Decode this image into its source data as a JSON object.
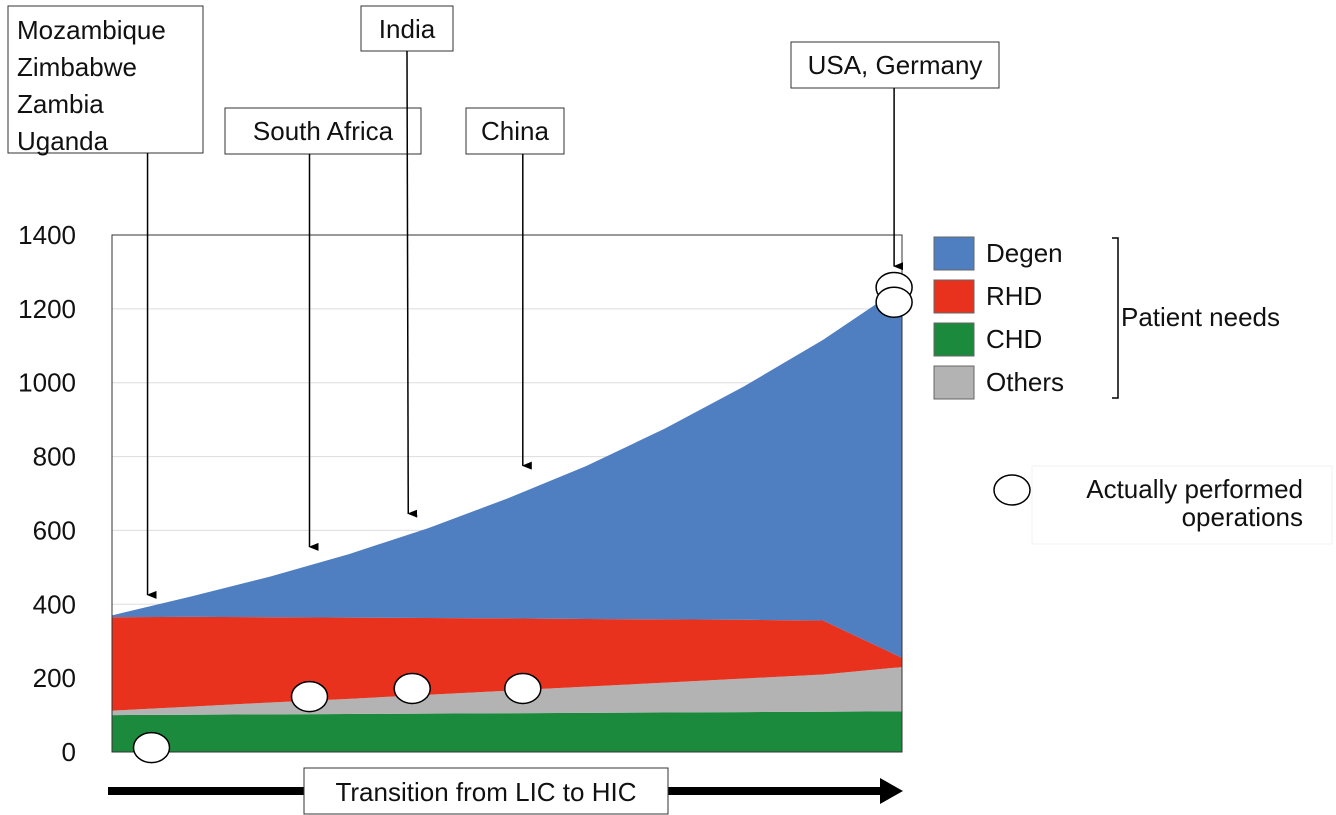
{
  "chart_data": {
    "type": "area",
    "title": "",
    "xlabel": "Transition from LIC to HIC",
    "ylabel": "",
    "ylim": [
      0,
      1400
    ],
    "yticks": [
      0,
      200,
      400,
      600,
      800,
      1000,
      1200,
      1400
    ],
    "x": [
      0,
      10,
      20,
      30,
      40,
      50,
      60,
      70,
      80,
      90,
      100
    ],
    "series": [
      {
        "name": "CHD",
        "color": "#1c8a3c",
        "values": [
          100,
          101,
          102,
          103,
          104,
          105,
          106,
          107,
          108,
          109,
          110
        ]
      },
      {
        "name": "Others",
        "color": "#b3b3b3",
        "values": [
          12,
          22,
          32,
          41,
          51,
          61,
          71,
          81,
          91,
          101,
          120
        ]
      },
      {
        "name": "RHD",
        "color": "#e8321e",
        "values": [
          253,
          243,
          231,
          220,
          208,
          196,
          183,
          171,
          159,
          146,
          25
        ]
      },
      {
        "name": "Degen",
        "color": "#4f7ec1",
        "values": [
          5,
          55,
          110,
          172,
          243,
          324,
          414,
          517,
          632,
          760,
          1005
        ]
      }
    ],
    "operations": [
      {
        "x": 5,
        "y": 12
      },
      {
        "x": 25,
        "y": 150
      },
      {
        "x": 38,
        "y": 172
      },
      {
        "x": 52,
        "y": 172
      },
      {
        "x": 99,
        "y": 1258
      },
      {
        "x": 99,
        "y": 1218
      }
    ],
    "annotations": [
      {
        "lines": [
          "Mozambique",
          "Zimbabwe",
          "Zambia",
          "Uganda"
        ],
        "x": 4.5,
        "y": 420
      },
      {
        "lines": [
          "South Africa"
        ],
        "x": 25,
        "y": 550
      },
      {
        "lines": [
          "India"
        ],
        "x": 37.5,
        "y": 640
      },
      {
        "lines": [
          "China"
        ],
        "x": 52,
        "y": 770
      },
      {
        "lines": [
          "USA, Germany"
        ],
        "x": 99,
        "y": 1310
      }
    ],
    "legend": {
      "position": "right",
      "items": [
        "Degen",
        "RHD",
        "CHD",
        "Others"
      ],
      "bracket_label": "Patient needs",
      "operations_label": [
        "Actually performed",
        "operations"
      ]
    },
    "grid": true
  }
}
